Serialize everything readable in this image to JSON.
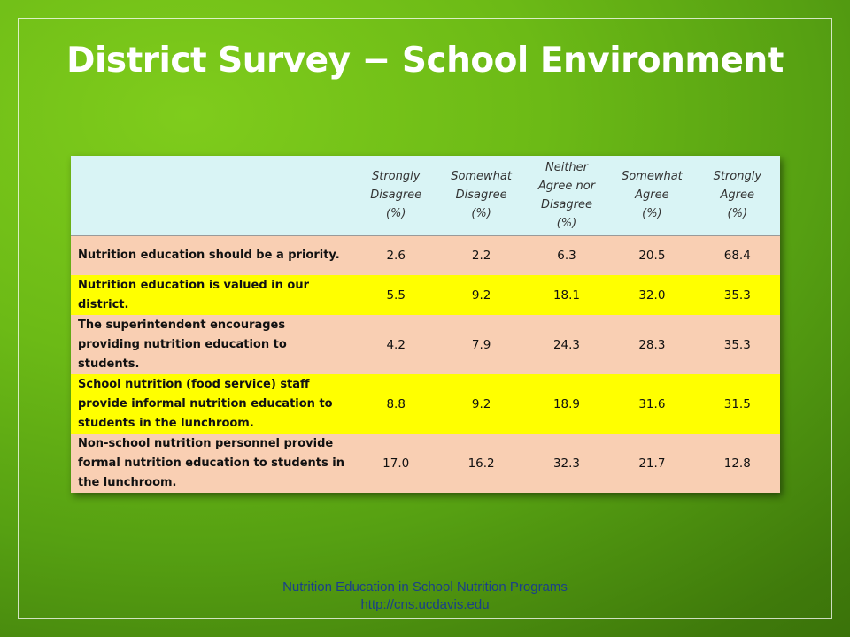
{
  "slide": {
    "title": "District Survey − School Environment"
  },
  "table": {
    "headers": [
      "",
      "Strongly\nDisagree\n(%)",
      "Somewhat\nDisagree\n(%)",
      "Neither\nAgree nor\nDisagree\n(%)",
      "Somewhat\nAgree\n(%)",
      "Strongly\nAgree\n(%)"
    ],
    "rows": [
      {
        "label": "Nutrition education should be a priority.",
        "values": [
          "2.6",
          "2.2",
          "6.3",
          "20.5",
          "68.4"
        ]
      },
      {
        "label": "Nutrition education is valued in our district.",
        "values": [
          "5.5",
          "9.2",
          "18.1",
          "32.0",
          "35.3"
        ]
      },
      {
        "label": "The superintendent encourages providing nutrition education to students.",
        "values": [
          "4.2",
          "7.9",
          "24.3",
          "28.3",
          "35.3"
        ]
      },
      {
        "label": "School nutrition (food service) staff provide informal nutrition education to students in the lunchroom.",
        "values": [
          "8.8",
          "9.2",
          "18.9",
          "31.6",
          "31.5"
        ]
      },
      {
        "label": "Non-school nutrition personnel provide formal nutrition education to students in the lunchroom.",
        "values": [
          "17.0",
          "16.2",
          "32.3",
          "21.7",
          "12.8"
        ]
      }
    ]
  },
  "footer": {
    "line1": "Nutrition Education in School Nutrition Programs",
    "line2": "http://cns.ucdavis.edu"
  },
  "colors": {
    "header_bg": "#d9f4f5",
    "row_peach": "#f9cfb3",
    "row_yellow": "#ffff00",
    "footer_text": "#1a3f8a",
    "title_text": "#ffffff"
  }
}
